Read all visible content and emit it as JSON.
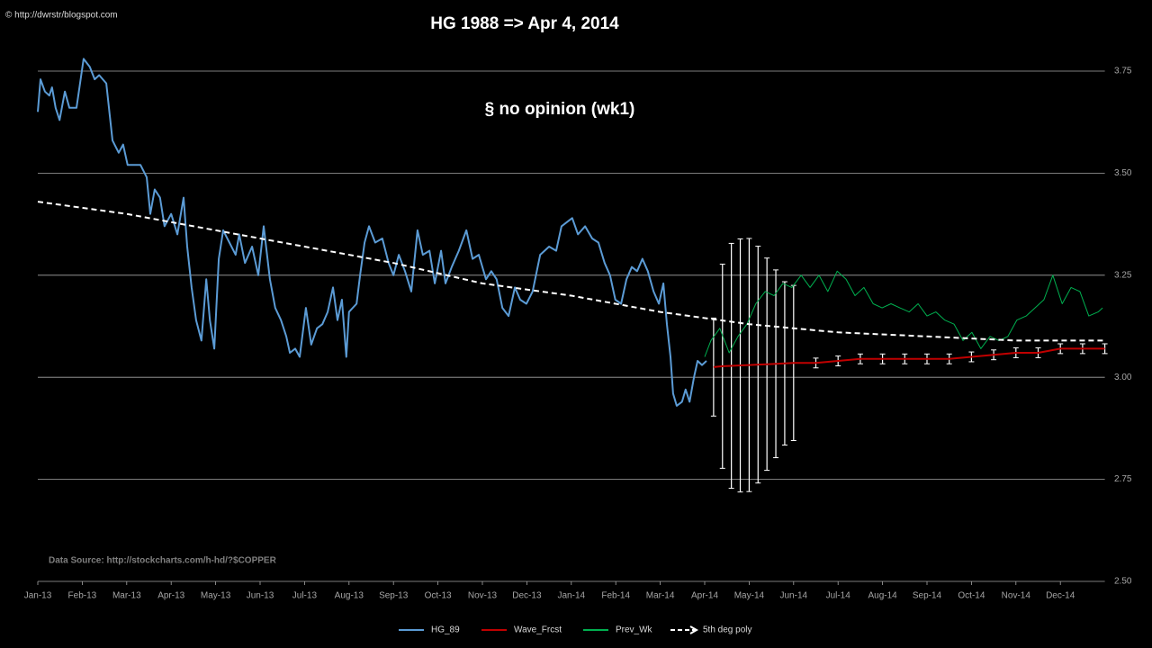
{
  "copyright": "© http://dwrstr/blogspot.com",
  "chart_data": {
    "type": "line",
    "title": "HG 1988 => Apr 4, 2014",
    "annotation": "§ no opinion (wk1)",
    "source": "Data Source:  http://stockcharts.com/h-hd/?$COPPER",
    "xlim": [
      0,
      24
    ],
    "xticks": [
      {
        "value": 0,
        "label": "Jan-13"
      },
      {
        "value": 1,
        "label": "Feb-13"
      },
      {
        "value": 2,
        "label": "Mar-13"
      },
      {
        "value": 3,
        "label": "Apr-13"
      },
      {
        "value": 4,
        "label": "May-13"
      },
      {
        "value": 5,
        "label": "Jun-13"
      },
      {
        "value": 6,
        "label": "Jul-13"
      },
      {
        "value": 7,
        "label": "Aug-13"
      },
      {
        "value": 8,
        "label": "Sep-13"
      },
      {
        "value": 9,
        "label": "Oct-13"
      },
      {
        "value": 10,
        "label": "Nov-13"
      },
      {
        "value": 11,
        "label": "Dec-13"
      },
      {
        "value": 12,
        "label": "Jan-14"
      },
      {
        "value": 13,
        "label": "Feb-14"
      },
      {
        "value": 14,
        "label": "Mar-14"
      },
      {
        "value": 15,
        "label": "Apr-14"
      },
      {
        "value": 16,
        "label": "May-14"
      },
      {
        "value": 17,
        "label": "Jun-14"
      },
      {
        "value": 18,
        "label": "Jul-14"
      },
      {
        "value": 19,
        "label": "Aug-14"
      },
      {
        "value": 20,
        "label": "Sep-14"
      },
      {
        "value": 21,
        "label": "Oct-14"
      },
      {
        "value": 22,
        "label": "Nov-14"
      },
      {
        "value": 23,
        "label": "Dec-14"
      }
    ],
    "ylim": [
      2.5,
      3.8
    ],
    "yticks": [
      {
        "value": 2.5,
        "label": "2.50"
      },
      {
        "value": 2.75,
        "label": "2.75"
      },
      {
        "value": 3,
        "label": "3.00"
      },
      {
        "value": 3.25,
        "label": "3.25"
      },
      {
        "value": 3.5,
        "label": "3.50"
      },
      {
        "value": 3.75,
        "label": "3.75"
      }
    ],
    "grid": true,
    "series": [
      {
        "name": "HG_89",
        "color": "#5b9bd5",
        "x": [
          0,
          0.06,
          0.16,
          0.26,
          0.32,
          0.4,
          0.49,
          0.61,
          0.71,
          0.87,
          1.03,
          1.17,
          1.28,
          1.38,
          1.54,
          1.68,
          1.82,
          1.92,
          2.02,
          2.19,
          2.31,
          2.45,
          2.53,
          2.63,
          2.75,
          2.85,
          3.0,
          3.14,
          3.28,
          3.36,
          3.46,
          3.56,
          3.68,
          3.79,
          3.87,
          3.97,
          4.07,
          4.17,
          4.31,
          4.45,
          4.53,
          4.66,
          4.82,
          4.96,
          5.08,
          5.22,
          5.34,
          5.47,
          5.59,
          5.67,
          5.79,
          5.89,
          6.03,
          6.15,
          6.28,
          6.4,
          6.52,
          6.64,
          6.74,
          6.84,
          6.94,
          7.0,
          7.17,
          7.25,
          7.35,
          7.45,
          7.59,
          7.75,
          7.89,
          8.0,
          8.12,
          8.26,
          8.4,
          8.54,
          8.66,
          8.81,
          8.93,
          9.07,
          9.17,
          9.31,
          9.47,
          9.64,
          9.78,
          9.92,
          10.08,
          10.2,
          10.32,
          10.45,
          10.59,
          10.73,
          10.85,
          10.99,
          11.13,
          11.3,
          11.5,
          11.66,
          11.78,
          11.9,
          12.02,
          12.15,
          12.31,
          12.47,
          12.61,
          12.75,
          12.87,
          12.99,
          13.12,
          13.24,
          13.36,
          13.48,
          13.6,
          13.72,
          13.85,
          13.97,
          14.07,
          14.15,
          14.23,
          14.29,
          14.37,
          14.49,
          14.57,
          14.66,
          14.76,
          14.84,
          14.94,
          15.04
        ],
        "values": [
          3.65,
          3.73,
          3.7,
          3.69,
          3.71,
          3.66,
          3.63,
          3.7,
          3.66,
          3.66,
          3.78,
          3.76,
          3.73,
          3.74,
          3.72,
          3.58,
          3.55,
          3.57,
          3.52,
          3.52,
          3.52,
          3.49,
          3.4,
          3.46,
          3.44,
          3.37,
          3.4,
          3.35,
          3.44,
          3.32,
          3.22,
          3.14,
          3.09,
          3.24,
          3.14,
          3.07,
          3.29,
          3.36,
          3.33,
          3.3,
          3.35,
          3.28,
          3.32,
          3.25,
          3.37,
          3.24,
          3.17,
          3.14,
          3.1,
          3.06,
          3.07,
          3.05,
          3.17,
          3.08,
          3.12,
          3.13,
          3.16,
          3.22,
          3.14,
          3.19,
          3.05,
          3.16,
          3.18,
          3.25,
          3.33,
          3.37,
          3.33,
          3.34,
          3.28,
          3.25,
          3.3,
          3.26,
          3.21,
          3.36,
          3.3,
          3.31,
          3.23,
          3.31,
          3.23,
          3.27,
          3.31,
          3.36,
          3.29,
          3.3,
          3.24,
          3.26,
          3.24,
          3.17,
          3.15,
          3.22,
          3.19,
          3.18,
          3.21,
          3.3,
          3.32,
          3.31,
          3.37,
          3.38,
          3.39,
          3.35,
          3.37,
          3.34,
          3.33,
          3.28,
          3.25,
          3.19,
          3.18,
          3.24,
          3.27,
          3.26,
          3.29,
          3.26,
          3.21,
          3.18,
          3.23,
          3.13,
          3.05,
          2.96,
          2.93,
          2.94,
          2.97,
          2.94,
          3.0,
          3.04,
          3.03,
          3.04
        ]
      },
      {
        "name": "Wave_Frcst",
        "color": "#c00000",
        "x": [
          15.2,
          15.4,
          15.6,
          15.8,
          16.0,
          16.2,
          16.4,
          16.6,
          16.8,
          17.0,
          17.5,
          18,
          18.5,
          19,
          19.5,
          20,
          20.5,
          21,
          21.5,
          22,
          22.5,
          23,
          23.5,
          24
        ],
        "values": [
          3.025,
          3.027,
          3.028,
          3.029,
          3.03,
          3.031,
          3.032,
          3.033,
          3.034,
          3.035,
          3.035,
          3.04,
          3.045,
          3.045,
          3.045,
          3.045,
          3.045,
          3.05,
          3.055,
          3.06,
          3.06,
          3.07,
          3.07,
          3.07
        ],
        "errors": [
          0.12,
          0.25,
          0.3,
          0.31,
          0.31,
          0.29,
          0.26,
          0.23,
          0.2,
          0.19,
          0.012,
          0.012,
          0.012,
          0.012,
          0.012,
          0.012,
          0.012,
          0.012,
          0.012,
          0.012,
          0.012,
          0.012,
          0.012,
          0.012
        ]
      },
      {
        "name": "Prev_Wk",
        "color": "#00b050",
        "x": [
          15.0,
          15.14,
          15.34,
          15.55,
          15.75,
          15.95,
          16.15,
          16.36,
          16.56,
          16.76,
          16.96,
          17.17,
          17.37,
          17.57,
          17.77,
          17.98,
          18.18,
          18.38,
          18.58,
          18.79,
          18.99,
          19.19,
          19.39,
          19.6,
          19.8,
          20.0,
          20.2,
          20.4,
          20.61,
          20.81,
          21.01,
          21.21,
          21.42,
          21.62,
          21.82,
          22.02,
          22.23,
          22.43,
          22.63,
          22.83,
          23.04,
          23.24,
          23.44,
          23.64,
          23.85,
          23.95
        ],
        "values": [
          3.05,
          3.09,
          3.12,
          3.06,
          3.1,
          3.13,
          3.18,
          3.21,
          3.2,
          3.23,
          3.22,
          3.25,
          3.22,
          3.25,
          3.21,
          3.26,
          3.24,
          3.2,
          3.22,
          3.18,
          3.17,
          3.18,
          3.17,
          3.16,
          3.18,
          3.15,
          3.16,
          3.14,
          3.13,
          3.09,
          3.11,
          3.07,
          3.1,
          3.09,
          3.1,
          3.14,
          3.15,
          3.17,
          3.19,
          3.25,
          3.18,
          3.22,
          3.21,
          3.15,
          3.16,
          3.17
        ]
      },
      {
        "name": "5th deg poly",
        "color": "#ffffff",
        "x": [
          0,
          2,
          4,
          6,
          8,
          10,
          12,
          14,
          16,
          18,
          20,
          22,
          24
        ],
        "values": [
          3.43,
          3.4,
          3.36,
          3.32,
          3.28,
          3.23,
          3.2,
          3.16,
          3.13,
          3.11,
          3.1,
          3.09,
          3.09
        ]
      }
    ]
  }
}
